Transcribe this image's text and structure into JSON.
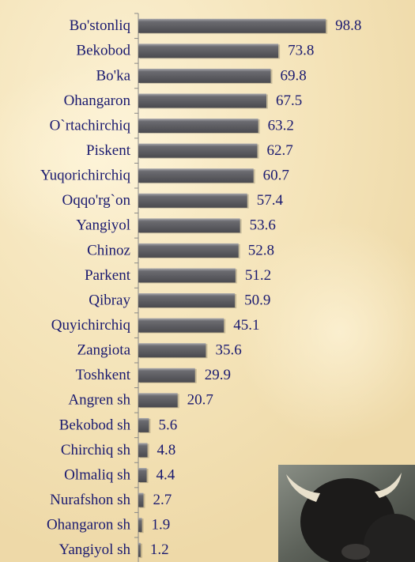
{
  "chart_data": {
    "type": "bar",
    "orientation": "horizontal",
    "categories": [
      "Bo'stonliq",
      "Bekobod",
      "Bo'ka",
      "Ohangaron",
      "O`rtachirchiq",
      "Piskent",
      "Yuqorichirchiq",
      "Oqqo'rg`on",
      "Yangiyol",
      "Chinoz",
      "Parkent",
      "Qibray",
      "Quyichirchiq",
      "Zangiota",
      "Toshkent",
      "Angren sh",
      "Bekobod sh",
      "Chirchiq sh",
      "Olmaliq sh",
      "Nurafshon sh",
      "Ohangaron sh",
      "Yangiyol sh"
    ],
    "values": [
      98.8,
      73.8,
      69.8,
      67.5,
      63.2,
      62.7,
      60.7,
      57.4,
      53.6,
      52.8,
      51.2,
      50.9,
      45.1,
      35.6,
      29.9,
      20.7,
      5.6,
      4.8,
      4.4,
      2.7,
      1.9,
      1.2
    ],
    "color": "#6b6b70",
    "xlim": [
      0,
      100
    ]
  }
}
